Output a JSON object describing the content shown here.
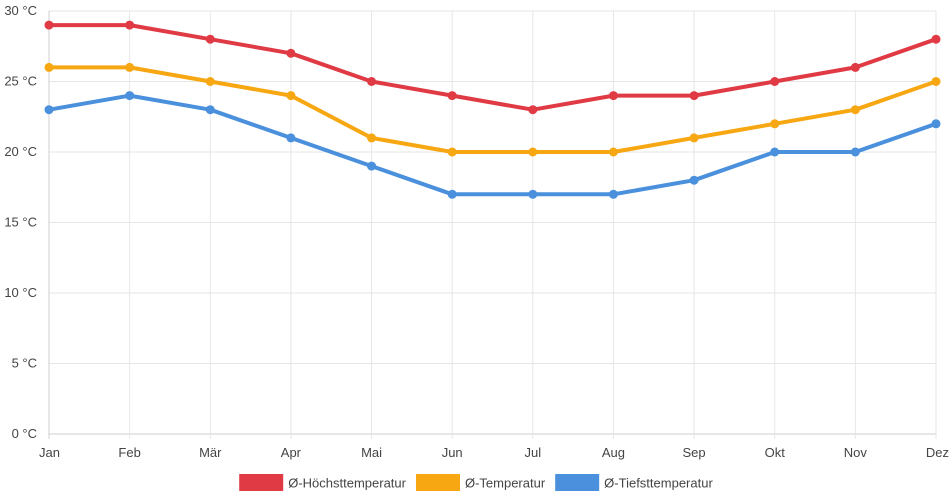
{
  "chart_data": {
    "type": "line",
    "title": "",
    "xlabel": "",
    "ylabel": "",
    "categories": [
      "Jan",
      "Feb",
      "Mär",
      "Apr",
      "Mai",
      "Jun",
      "Jul",
      "Aug",
      "Sep",
      "Okt",
      "Nov",
      "Dez"
    ],
    "ylim": [
      0,
      30
    ],
    "yticks": [
      0,
      5,
      10,
      15,
      20,
      25,
      30
    ],
    "ytick_labels": [
      "0 °C",
      "5 °C",
      "10 °C",
      "15 °C",
      "20 °C",
      "25 °C",
      "30 °C"
    ],
    "grid": true,
    "legend_position": "bottom",
    "series": [
      {
        "name": "Ø-Höchsttemperatur",
        "color": "#e03a45",
        "values": [
          29,
          29,
          28,
          27,
          25,
          24,
          23,
          24,
          24,
          25,
          26,
          28
        ]
      },
      {
        "name": "Ø-Temperatur",
        "color": "#f7a712",
        "values": [
          26,
          26,
          25,
          24,
          21,
          20,
          20,
          20,
          21,
          22,
          23,
          25
        ]
      },
      {
        "name": "Ø-Tiefsttemperatur",
        "color": "#4a90dc",
        "values": [
          23,
          24,
          23,
          21,
          19,
          17,
          17,
          17,
          18,
          20,
          20,
          22
        ]
      }
    ]
  }
}
